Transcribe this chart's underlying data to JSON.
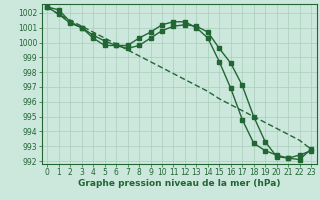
{
  "xlabel": "Graphe pression niveau de la mer (hPa)",
  "background_color": "#cce8dd",
  "grid_color": "#aaccbb",
  "line_color": "#226633",
  "xlim": [
    0,
    23
  ],
  "ylim": [
    991.8,
    1002.6
  ],
  "yticks": [
    992,
    993,
    994,
    995,
    996,
    997,
    998,
    999,
    1000,
    1001,
    1002
  ],
  "xticks": [
    0,
    1,
    2,
    3,
    4,
    5,
    6,
    7,
    8,
    9,
    10,
    11,
    12,
    13,
    14,
    15,
    16,
    17,
    18,
    19,
    20,
    21,
    22,
    23
  ],
  "series1": [
    1002.4,
    1002.2,
    1001.4,
    1001.0,
    1000.5,
    1000.1,
    999.8,
    999.6,
    999.8,
    1000.3,
    1000.8,
    1001.1,
    1001.2,
    1001.1,
    1000.7,
    999.6,
    998.6,
    997.1,
    995.0,
    993.3,
    992.3,
    992.2,
    992.1,
    992.8
  ],
  "series2": [
    1002.4,
    1001.9,
    1001.3,
    1001.0,
    1000.3,
    999.8,
    999.8,
    999.8,
    1000.3,
    1000.7,
    1001.2,
    1001.4,
    1001.4,
    1001.0,
    1000.3,
    998.7,
    996.9,
    994.8,
    993.2,
    992.7,
    992.4,
    992.2,
    992.4,
    992.7
  ],
  "series_linear": [
    1002.4,
    1001.9,
    1001.5,
    1001.1,
    1000.7,
    1000.3,
    999.9,
    999.5,
    999.1,
    998.7,
    998.3,
    997.9,
    997.5,
    997.1,
    996.7,
    996.2,
    995.8,
    995.4,
    995.0,
    994.6,
    994.2,
    993.8,
    993.4,
    992.8
  ],
  "marker": "s",
  "markersize": 2.5,
  "linewidth": 1.0,
  "xlabel_fontsize": 6.5,
  "tick_fontsize": 5.5,
  "tick_color": "#226633",
  "xlabel_color": "#226633",
  "xlabel_fontweight": "bold"
}
